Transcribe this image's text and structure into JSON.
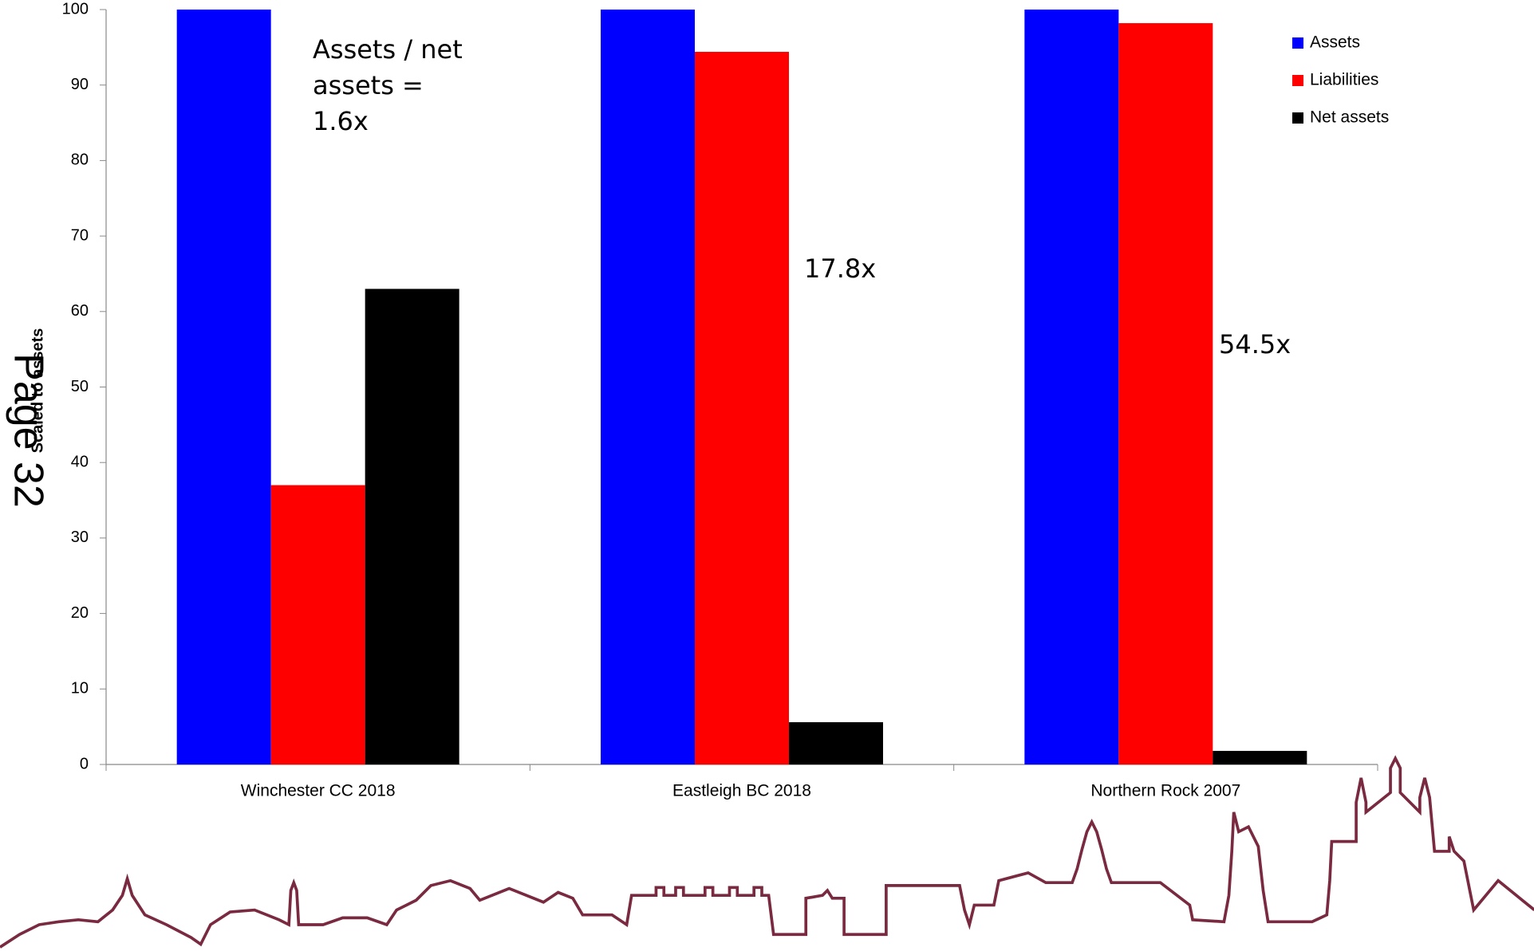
{
  "chart_data": {
    "type": "bar",
    "y_label": "Scaled to assets",
    "page_label": "Page 32",
    "categories": [
      "Winchester CC 2018",
      "Eastleigh BC 2018",
      "Northern Rock 2007"
    ],
    "series": [
      {
        "name": "Assets",
        "color": "#0000ff",
        "values": [
          100,
          100,
          100
        ]
      },
      {
        "name": "Liabilities",
        "color": "#ff0000",
        "values": [
          37,
          94.4,
          98.2
        ]
      },
      {
        "name": "Net assets",
        "color": "#000000",
        "values": [
          63,
          5.6,
          1.8
        ]
      }
    ],
    "annotations": [
      "Assets / net assets = 1.6x",
      "17.8x",
      "54.5x"
    ],
    "ylim": [
      0,
      100
    ],
    "yticks": [
      0,
      10,
      20,
      30,
      40,
      50,
      60,
      70,
      80,
      90,
      100
    ],
    "legend": "upper right",
    "grid": false
  }
}
